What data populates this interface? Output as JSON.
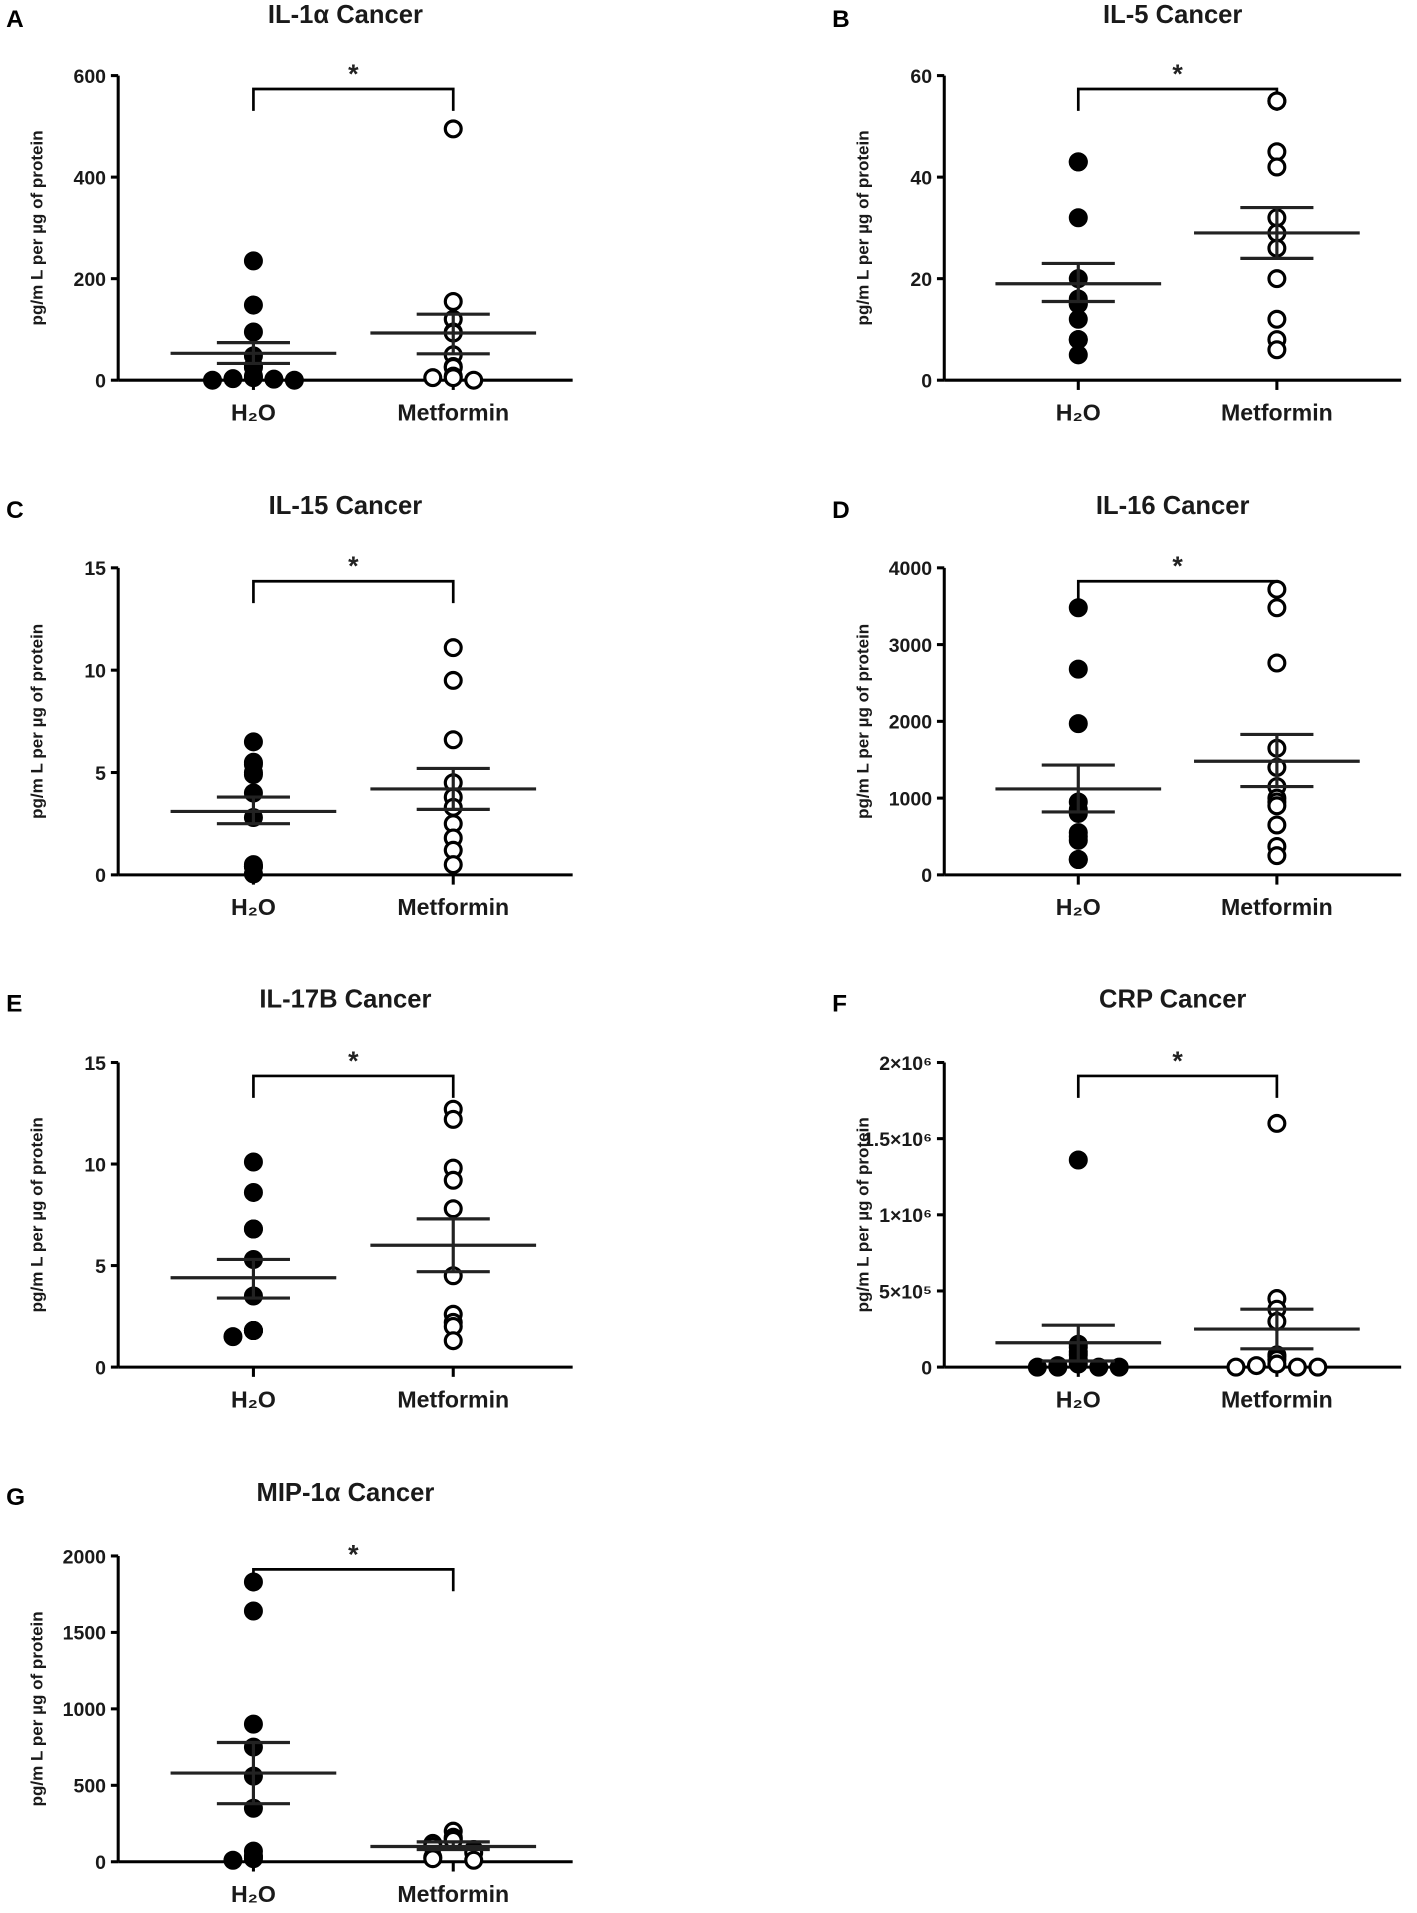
{
  "chart_data": [
    {
      "letter": "A",
      "type": "scatter",
      "title": "IL-1α Cancer",
      "ylabel": "pg/m L per µg of protein",
      "ylim": [
        0,
        600
      ],
      "ticks": [
        0,
        200,
        400,
        600
      ],
      "tick_labels": [
        "0",
        "200",
        "400",
        "600"
      ],
      "categories": [
        "H₂O",
        "Metformin"
      ],
      "significance": "*",
      "series": [
        {
          "name": "H₂O",
          "marker": "filled",
          "values": [
            235,
            148,
            95,
            48,
            28,
            25,
            8,
            5,
            3,
            2,
            0,
            0
          ],
          "mean": 53,
          "sem": [
            33,
            74
          ]
        },
        {
          "name": "Metformin",
          "marker": "open",
          "values": [
            495,
            155,
            120,
            95,
            93,
            50,
            27,
            25,
            8,
            5,
            5,
            0
          ],
          "mean": 93,
          "sem": [
            52,
            130
          ]
        }
      ]
    },
    {
      "letter": "B",
      "type": "scatter",
      "title": "IL-5 Cancer",
      "ylabel": "pg/m L per µg of protein",
      "ylim": [
        0,
        60
      ],
      "ticks": [
        0,
        20,
        40,
        60
      ],
      "tick_labels": [
        "0",
        "20",
        "40",
        "60"
      ],
      "categories": [
        "H₂O",
        "Metformin"
      ],
      "significance": "*",
      "series": [
        {
          "name": "H₂O",
          "marker": "filled",
          "values": [
            43,
            43,
            32,
            20,
            16,
            15,
            15,
            12,
            8,
            8,
            5
          ],
          "mean": 19,
          "sem": [
            15.5,
            23
          ]
        },
        {
          "name": "Metformin",
          "marker": "open",
          "values": [
            55,
            55,
            45,
            42,
            32,
            29,
            26,
            20,
            12,
            8,
            6
          ],
          "mean": 29,
          "sem": [
            24,
            34
          ]
        }
      ]
    },
    {
      "letter": "C",
      "type": "scatter",
      "title": "IL-15 Cancer",
      "ylabel": "pg/m L per µg of protein",
      "ylim": [
        0,
        15
      ],
      "ticks": [
        0,
        5,
        10,
        15
      ],
      "tick_labels": [
        "0",
        "5",
        "10",
        "15"
      ],
      "categories": [
        "H₂O",
        "Metformin"
      ],
      "significance": "*",
      "series": [
        {
          "name": "H₂O",
          "marker": "filled",
          "values": [
            6.5,
            5.5,
            5.4,
            5.0,
            4.9,
            4.0,
            2.8,
            0.5,
            0.4,
            0.4,
            0.05
          ],
          "mean": 3.1,
          "sem": [
            2.5,
            3.8
          ]
        },
        {
          "name": "Metformin",
          "marker": "open",
          "values": [
            11.1,
            9.5,
            6.6,
            4.5,
            3.8,
            3.3,
            2.5,
            1.8,
            1.2,
            0.5
          ],
          "mean": 4.2,
          "sem": [
            3.2,
            5.2
          ]
        }
      ]
    },
    {
      "letter": "D",
      "type": "scatter",
      "title": "IL-16 Cancer",
      "ylabel": "pg/m L per µg of protein",
      "ylim": [
        0,
        4000
      ],
      "ticks": [
        0,
        1000,
        2000,
        3000,
        4000
      ],
      "tick_labels": [
        "0",
        "1000",
        "2000",
        "3000",
        "4000"
      ],
      "categories": [
        "H₂O",
        "Metformin"
      ],
      "significance": "*",
      "series": [
        {
          "name": "H₂O",
          "marker": "filled",
          "values": [
            3480,
            2680,
            1970,
            950,
            850,
            800,
            550,
            500,
            450,
            200,
            200
          ],
          "mean": 1120,
          "sem": [
            820,
            1430
          ]
        },
        {
          "name": "Metformin",
          "marker": "open",
          "values": [
            3720,
            3480,
            2760,
            1650,
            1400,
            1150,
            1000,
            950,
            900,
            650,
            370,
            250
          ],
          "mean": 1480,
          "sem": [
            1150,
            1830
          ]
        }
      ]
    },
    {
      "letter": "E",
      "type": "scatter",
      "title": "IL-17B Cancer",
      "ylabel": "pg/m L per µg of protein",
      "ylim": [
        0,
        15
      ],
      "ticks": [
        0,
        5,
        10,
        15
      ],
      "tick_labels": [
        "0",
        "5",
        "10",
        "15"
      ],
      "categories": [
        "H₂O",
        "Metformin"
      ],
      "significance": "*",
      "series": [
        {
          "name": "H₂O",
          "marker": "filled",
          "values": [
            10.1,
            8.6,
            6.8,
            6.8,
            5.3,
            3.5,
            1.8,
            1.8,
            1.8,
            1.8,
            1.5
          ],
          "mean": 4.4,
          "sem": [
            3.4,
            5.3
          ]
        },
        {
          "name": "Metformin",
          "marker": "open",
          "values": [
            12.7,
            12.2,
            9.8,
            9.2,
            7.8,
            4.5,
            2.6,
            2.2,
            2.0,
            1.3
          ],
          "mean": 6.0,
          "sem": [
            4.7,
            7.3
          ]
        }
      ]
    },
    {
      "letter": "F",
      "type": "scatter",
      "title": "CRP Cancer",
      "ylabel": "pg/m L per µg of protein",
      "ylim": [
        0,
        2000000
      ],
      "ticks": [
        0,
        500000,
        1000000,
        1500000,
        2000000
      ],
      "tick_labels": [
        "0",
        "5×10⁵",
        "1×10⁶",
        "1.5×10⁶",
        "2×10⁶"
      ],
      "categories": [
        "H₂O",
        "Metformin"
      ],
      "significance": "*",
      "series": [
        {
          "name": "H₂O",
          "marker": "filled",
          "values": [
            1360000,
            150000,
            130000,
            100000,
            80000,
            50000,
            20000,
            10000,
            0,
            0,
            0,
            0
          ],
          "mean": 160000,
          "sem": [
            40000,
            275000
          ]
        },
        {
          "name": "Metformin",
          "marker": "open",
          "values": [
            1600000,
            450000,
            380000,
            300000,
            80000,
            70000,
            50000,
            20000,
            10000,
            0,
            0,
            0
          ],
          "mean": 250000,
          "sem": [
            120000,
            380000
          ]
        }
      ]
    },
    {
      "letter": "G",
      "type": "scatter",
      "title": "MIP-1α Cancer",
      "ylabel": "pg/m L per µg of protein",
      "ylim": [
        0,
        2000
      ],
      "ticks": [
        0,
        500,
        1000,
        1500,
        2000
      ],
      "tick_labels": [
        "0",
        "500",
        "1000",
        "1500",
        "2000"
      ],
      "categories": [
        "H₂O",
        "Metformin"
      ],
      "significance": "*",
      "series": [
        {
          "name": "H₂O",
          "marker": "filled",
          "values": [
            1830,
            1640,
            900,
            750,
            560,
            350,
            70,
            40,
            30,
            20,
            10
          ],
          "mean": 580,
          "sem": [
            380,
            780
          ]
        },
        {
          "name": "Metformin",
          "marker": "open",
          "values": [
            200,
            160,
            150,
            140,
            120,
            100,
            80,
            60,
            30,
            20,
            10
          ],
          "mean": 100,
          "sem": [
            80,
            130
          ]
        }
      ]
    }
  ]
}
